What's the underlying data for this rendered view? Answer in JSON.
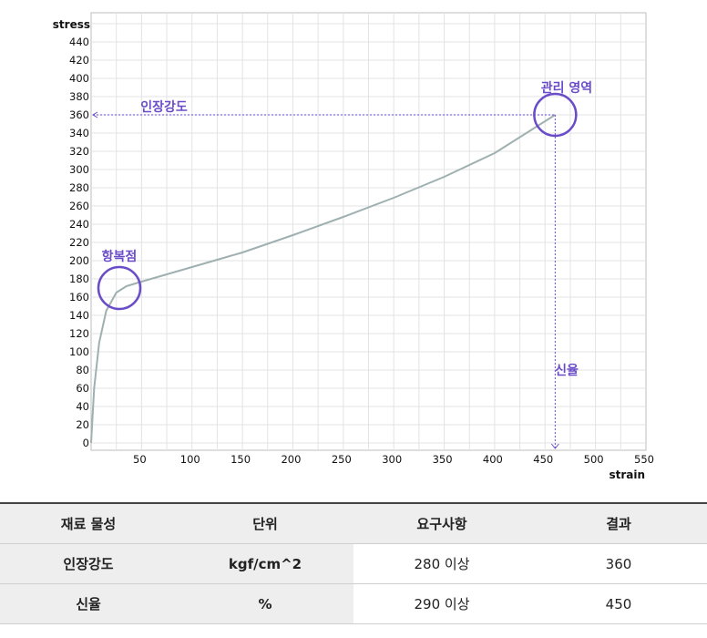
{
  "chart_data": {
    "type": "line",
    "xlabel": "strain",
    "ylabel": "stress",
    "xlim": [
      0,
      550
    ],
    "ylim": [
      0,
      460
    ],
    "xticks": [
      50,
      100,
      150,
      200,
      250,
      300,
      350,
      400,
      450,
      500,
      550
    ],
    "yticks": [
      0,
      20,
      40,
      60,
      80,
      100,
      120,
      140,
      160,
      180,
      200,
      220,
      240,
      260,
      280,
      300,
      320,
      340,
      360,
      380,
      400,
      420,
      440
    ],
    "grid": true,
    "series": [
      {
        "values": [
          [
            0,
            0
          ],
          [
            3,
            60
          ],
          [
            8,
            110
          ],
          [
            15,
            145
          ],
          [
            25,
            165
          ],
          [
            35,
            172
          ],
          [
            50,
            177
          ],
          [
            100,
            193
          ],
          [
            150,
            209
          ],
          [
            200,
            228
          ],
          [
            250,
            248
          ],
          [
            300,
            269
          ],
          [
            350,
            292
          ],
          [
            400,
            318
          ],
          [
            460,
            360
          ]
        ]
      }
    ],
    "annotations": {
      "tensile_strength": {
        "label": "인장강도",
        "y": 360
      },
      "yield_point": {
        "label": "항복점",
        "x": 28,
        "y": 170
      },
      "control_region": {
        "label": "관리 영역",
        "x": 450,
        "y": 360
      },
      "elongation": {
        "label": "신율",
        "x": 450
      }
    },
    "colors": {
      "curve": "#9fb0b0",
      "annotation": "#6a4cc8",
      "grid": "#e3e3e3"
    }
  },
  "table": {
    "headers": [
      "재료 물성",
      "단위",
      "요구사항",
      "결과"
    ],
    "rows": [
      [
        "인장강도",
        "kgf/cm^2",
        "280 이상",
        "360"
      ],
      [
        "신율",
        "%",
        "290 이상",
        "450"
      ]
    ]
  }
}
